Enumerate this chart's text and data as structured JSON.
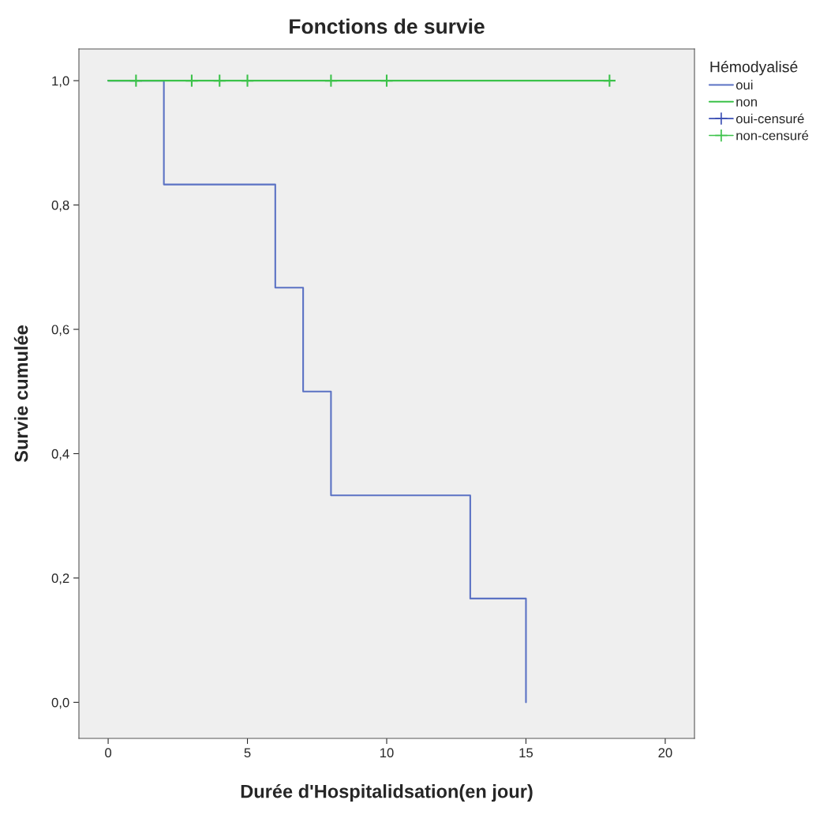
{
  "chart_data": {
    "type": "step",
    "title": "Fonctions de survie",
    "xlabel": "Durée d'Hospitalidsation(en jour)",
    "ylabel": "Survie cumulée",
    "legend_title": "Hémodyalisé",
    "legend": "top right",
    "grid": false,
    "xlim": [
      -1.05,
      21.05
    ],
    "ylim": [
      -0.058,
      1.051
    ],
    "xticks": [
      0,
      5,
      10,
      15,
      20
    ],
    "yticks": [
      {
        "value": 0,
        "label": "0,0"
      },
      {
        "value": 0.2,
        "label": "0,2"
      },
      {
        "value": 0.4,
        "label": "0,4"
      },
      {
        "value": 0.6,
        "label": "0,6"
      },
      {
        "value": 0.8,
        "label": "0,8"
      },
      {
        "value": 1,
        "label": "1,0"
      }
    ],
    "series": [
      {
        "name": "oui",
        "color": "#5b72c4",
        "x": [
          0,
          2,
          6,
          7,
          8,
          13,
          15
        ],
        "values": [
          1,
          0.833,
          0.667,
          0.5,
          0.333,
          0.167,
          0
        ]
      },
      {
        "name": "non",
        "color": "#3cc24a",
        "x": [
          0,
          18
        ],
        "values": [
          1,
          1
        ]
      },
      {
        "name": "oui-censuré",
        "type": "scatter",
        "marker": "cross",
        "color": "#3c50b4"
      },
      {
        "name": "non-censuré",
        "type": "scatter",
        "marker": "cross",
        "color": "#3cc24a",
        "x": [
          1,
          3,
          4,
          5,
          8,
          10,
          18
        ],
        "values": [
          1,
          1,
          1,
          1,
          1,
          1,
          1
        ]
      }
    ]
  }
}
